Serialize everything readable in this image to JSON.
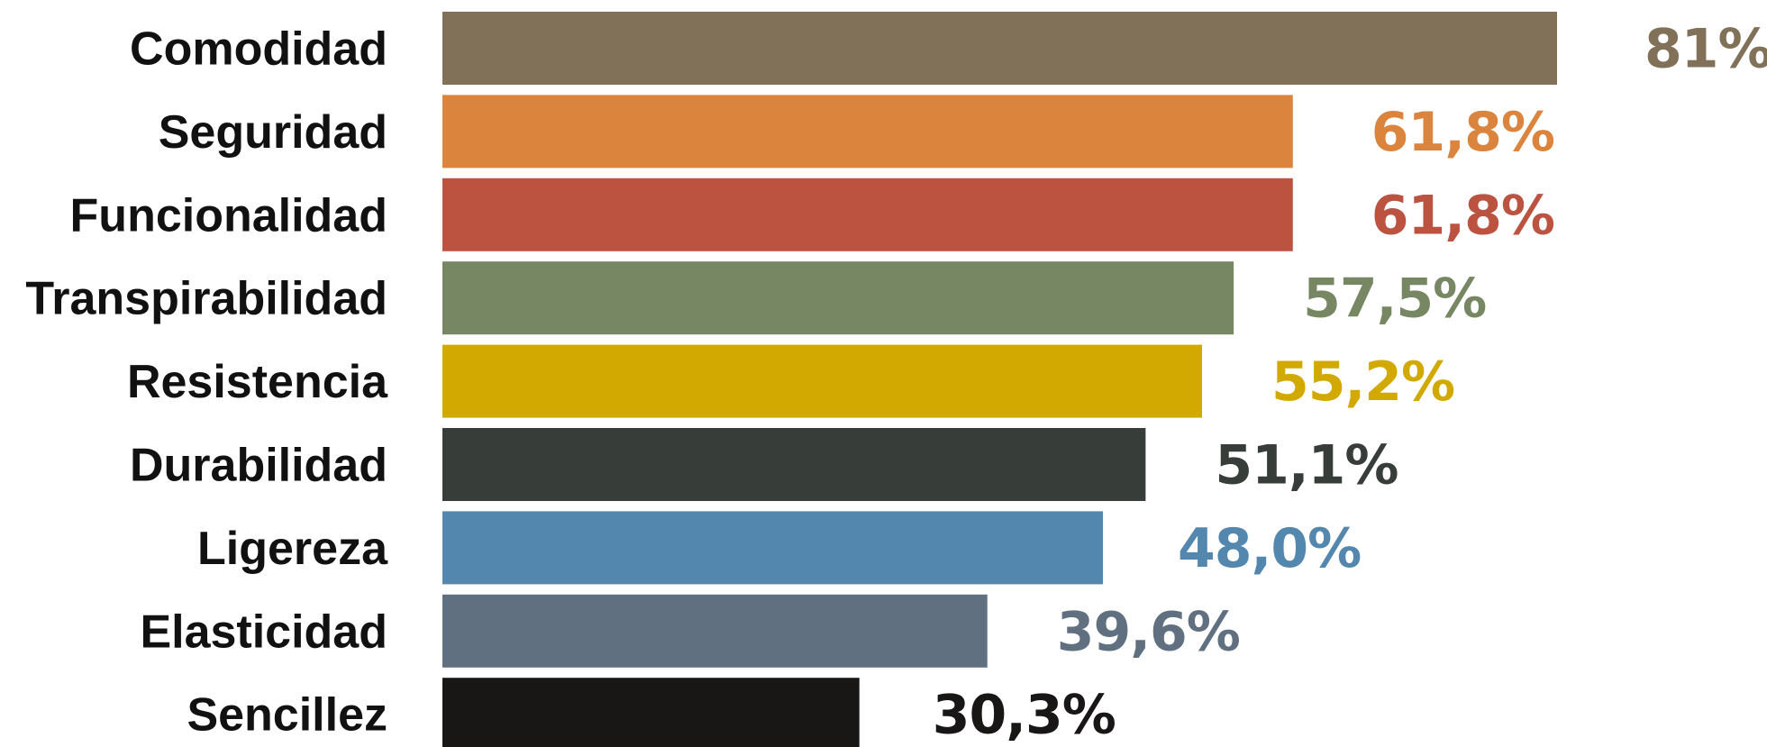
{
  "chart_data": {
    "type": "bar",
    "orientation": "horizontal",
    "categories": [
      "Comodidad",
      "Seguridad",
      "Funcionalidad",
      "Transpirabilidad",
      "Resistencia",
      "Durabilidad",
      "Ligereza",
      "Elasticidad",
      "Sencillez"
    ],
    "values": [
      81,
      61.8,
      61.8,
      57.5,
      55.2,
      51.1,
      48.0,
      39.6,
      30.3
    ],
    "value_labels": [
      "81%",
      "61,8%",
      "61,8%",
      "57,5%",
      "55,2%",
      "51,1%",
      "48,0%",
      "39,6%",
      "30,3%"
    ],
    "colors": [
      "#807158",
      "#db843d",
      "#bc5340",
      "#778663",
      "#d2a900",
      "#373d38",
      "#5387ad",
      "#607080",
      "#181716"
    ],
    "title": "",
    "xlabel": "",
    "ylabel": "",
    "xlim": [
      0,
      81
    ],
    "grid": false,
    "legend": "none"
  }
}
